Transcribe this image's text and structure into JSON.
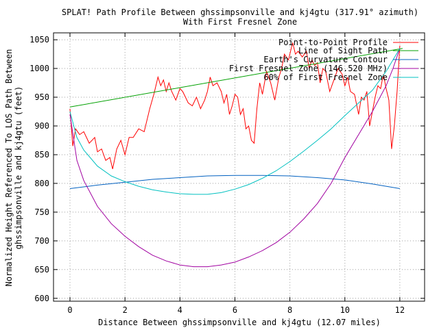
{
  "chart_data": {
    "type": "line",
    "title_line1": "SPLAT! Path Profile Between ghssimpsonville and kj4gtu (317.91° azimuth)",
    "title_line2": "With First Fresnel Zone",
    "xlabel": "Distance Between ghssimpsonville and kj4gtu (12.07 miles)",
    "ylabel_line1": "Normalized Height Referenced To LOS Path Between",
    "ylabel_line2": "ghssimpsonville and kj4gtu (feet)",
    "xlim": [
      -0.6,
      12.9
    ],
    "ylim": [
      595,
      1062
    ],
    "xticks": [
      0,
      2,
      4,
      6,
      8,
      10,
      12
    ],
    "yticks": [
      600,
      650,
      700,
      750,
      800,
      850,
      900,
      950,
      1000,
      1050
    ],
    "grid": true,
    "legend_position": "top-right",
    "series": [
      {
        "name": "Point-to-Point Profile",
        "color": "#ff0000",
        "x": [
          0,
          0.1,
          0.2,
          0.35,
          0.5,
          0.7,
          0.9,
          1.0,
          1.15,
          1.3,
          1.45,
          1.55,
          1.7,
          1.85,
          2.0,
          2.15,
          2.3,
          2.5,
          2.7,
          2.9,
          3.05,
          3.2,
          3.3,
          3.4,
          3.5,
          3.6,
          3.7,
          3.85,
          4.0,
          4.1,
          4.2,
          4.3,
          4.45,
          4.6,
          4.75,
          4.9,
          5.0,
          5.1,
          5.2,
          5.35,
          5.5,
          5.6,
          5.7,
          5.8,
          5.9,
          6.0,
          6.1,
          6.2,
          6.3,
          6.4,
          6.5,
          6.6,
          6.7,
          6.8,
          6.9,
          7.0,
          7.15,
          7.3,
          7.45,
          7.6,
          7.7,
          7.8,
          7.95,
          8.1,
          8.2,
          8.3,
          8.45,
          8.6,
          8.7,
          8.8,
          8.9,
          9.0,
          9.1,
          9.2,
          9.3,
          9.45,
          9.6,
          9.75,
          9.9,
          10.0,
          10.1,
          10.2,
          10.35,
          10.5,
          10.6,
          10.7,
          10.8,
          10.9,
          11.0,
          11.1,
          11.2,
          11.3,
          11.4,
          11.5,
          11.6,
          11.7,
          11.8,
          11.9,
          12.0
        ],
        "values": [
          930,
          865,
          895,
          885,
          890,
          870,
          880,
          855,
          860,
          840,
          845,
          825,
          860,
          875,
          850,
          880,
          880,
          895,
          890,
          930,
          955,
          985,
          970,
          980,
          960,
          975,
          960,
          945,
          965,
          960,
          950,
          940,
          935,
          950,
          930,
          945,
          960,
          985,
          970,
          975,
          960,
          940,
          955,
          920,
          935,
          955,
          950,
          920,
          930,
          895,
          900,
          875,
          870,
          930,
          975,
          955,
          995,
          975,
          945,
          985,
          1000,
          1025,
          1015,
          1045,
          1025,
          1030,
          1020,
          1030,
          1000,
          1015,
          1005,
          1010,
          975,
          1000,
          995,
          960,
          980,
          1000,
          990,
          970,
          985,
          960,
          955,
          920,
          950,
          945,
          960,
          900,
          925,
          950,
          970,
          965,
          990,
          965,
          945,
          860,
          900,
          960,
          1040
        ]
      },
      {
        "name": "Line of Sight Path",
        "color": "#00a000",
        "x": [
          0,
          12.1
        ],
        "values": [
          933,
          1035
        ]
      },
      {
        "name": "Earth's Curvature Contour",
        "color": "#0060c0",
        "x": [
          0,
          1,
          2,
          3,
          4,
          5,
          6,
          7,
          8,
          9,
          10,
          11,
          12
        ],
        "values": [
          791,
          797,
          802,
          807,
          810,
          813,
          814,
          814,
          813,
          810,
          806,
          799,
          791
        ]
      },
      {
        "name": "First Fresnel Zone (146.520 MHz)",
        "color": "#a000a0",
        "x": [
          0,
          0.25,
          0.5,
          1,
          1.5,
          2,
          2.5,
          3,
          3.5,
          4,
          4.5,
          5,
          5.5,
          6,
          6.5,
          7,
          7.5,
          8,
          8.5,
          9,
          9.5,
          10,
          10.5,
          11,
          11.5,
          11.75,
          12
        ],
        "values": [
          920,
          840,
          805,
          760,
          730,
          708,
          690,
          675,
          665,
          658,
          655,
          655,
          658,
          663,
          672,
          683,
          697,
          715,
          738,
          765,
          800,
          845,
          885,
          925,
          970,
          1000,
          1035
        ]
      },
      {
        "name": "60% of First Fresnel Zone",
        "color": "#00c0c0",
        "x": [
          0,
          0.25,
          0.5,
          1,
          1.5,
          2,
          2.5,
          3,
          3.5,
          4,
          4.5,
          5,
          5.5,
          6,
          6.5,
          7,
          7.5,
          8,
          8.5,
          9,
          9.5,
          10,
          10.5,
          11,
          11.5,
          11.75,
          12
        ],
        "values": [
          925,
          880,
          858,
          830,
          813,
          803,
          795,
          789,
          785,
          782,
          781,
          781,
          784,
          790,
          798,
          809,
          822,
          838,
          856,
          875,
          895,
          918,
          940,
          962,
          995,
          1015,
          1035
        ]
      }
    ]
  }
}
